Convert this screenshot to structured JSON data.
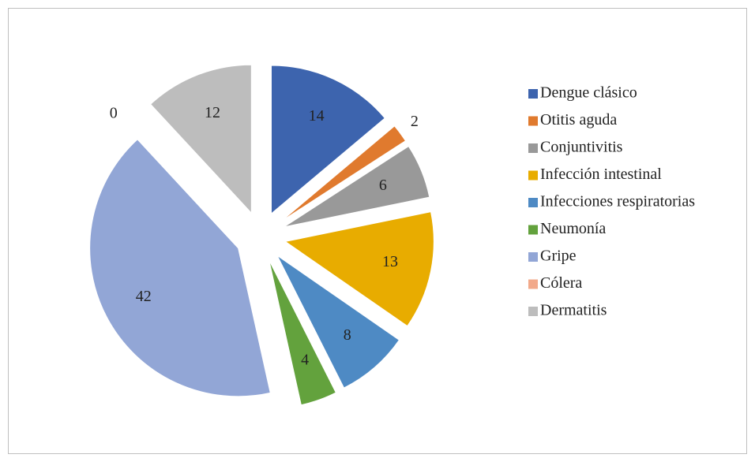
{
  "chart_data": {
    "type": "pie",
    "categories": [
      "Dengue clásico",
      "Otitis aguda",
      "Conjuntivitis",
      "Infección intestinal",
      "Infecciones respiratorias",
      "Neumonía",
      "Gripe",
      "Cólera",
      "Dermatitis"
    ],
    "values": [
      14,
      2,
      6,
      13,
      8,
      4,
      42,
      0,
      12
    ],
    "colors": [
      "#3d64ae",
      "#e07a2e",
      "#999999",
      "#e8ac00",
      "#4e8ac4",
      "#63a23d",
      "#92a6d6",
      "#f2a98a",
      "#bdbdbd"
    ],
    "legend": "right"
  }
}
